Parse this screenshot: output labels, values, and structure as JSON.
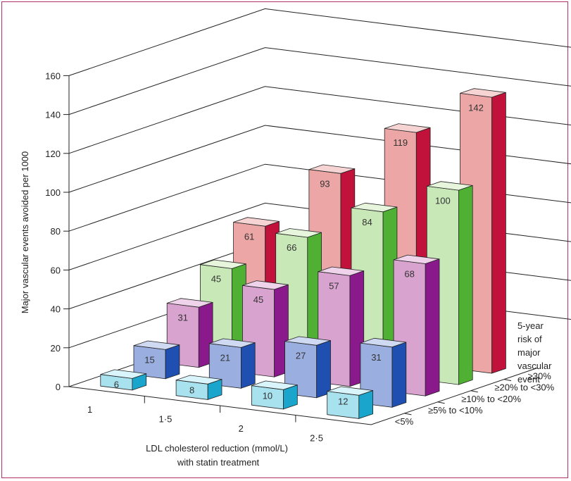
{
  "chart_data": {
    "type": "bar",
    "title": "",
    "ylabel": "Major vascular events avoided per 1000",
    "xlabel_line1": "LDL cholesterol reduction (mmol/L)",
    "xlabel_line2": "with statin treatment",
    "zlabel_lines": [
      "5-year",
      "risk of",
      "major",
      "vascular",
      "event"
    ],
    "ylim": [
      0,
      160
    ],
    "yticks": [
      "0",
      "20",
      "40",
      "60",
      "80",
      "100",
      "120",
      "140",
      "160"
    ],
    "categories": [
      "1",
      "1·5",
      "2",
      "2·5"
    ],
    "series": [
      {
        "name": "<5%",
        "values": [
          6,
          8,
          10,
          12
        ]
      },
      {
        "name": "≥5% to <10%",
        "values": [
          15,
          21,
          27,
          31
        ]
      },
      {
        "name": "≥10% to <20%",
        "values": [
          31,
          45,
          57,
          68
        ]
      },
      {
        "name": "≥20% to <30%",
        "values": [
          45,
          66,
          84,
          100
        ]
      },
      {
        "name": "≥30%",
        "values": [
          61,
          93,
          119,
          142
        ]
      }
    ],
    "colors": [
      {
        "front": "#a8e2ef",
        "top": "#d9f4fa",
        "side": "#1aa6cc"
      },
      {
        "front": "#9aaee0",
        "top": "#cfd9f2",
        "side": "#1f4fb0"
      },
      {
        "front": "#d9a3d0",
        "top": "#efd3ea",
        "side": "#8a1a8c"
      },
      {
        "front": "#c8e8b8",
        "top": "#e6f5dc",
        "side": "#4fb034"
      },
      {
        "front": "#eca6a6",
        "top": "#f7d4d4",
        "side": "#c0123a"
      }
    ]
  }
}
